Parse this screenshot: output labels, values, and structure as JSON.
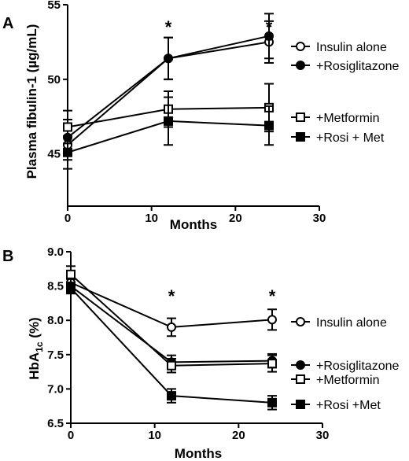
{
  "chart_data": [
    {
      "type": "line",
      "panel_label": "A",
      "xlabel": "Months",
      "ylabel": "Plasma fibulin-1 (µg/mL)",
      "xlim": [
        0,
        30
      ],
      "ylim": [
        41.5,
        55
      ],
      "xticks": [
        0,
        10,
        20,
        30
      ],
      "yticks": [
        45,
        50,
        55
      ],
      "x": [
        0,
        12,
        24
      ],
      "grid": false,
      "legend_position": "right",
      "significance_marks": [
        {
          "x": 12,
          "text": "*"
        },
        {
          "x": 24,
          "text": "*"
        }
      ],
      "series": [
        {
          "name": "Insulin alone",
          "marker": "open-circle",
          "values": [
            45.6,
            51.4,
            52.5
          ],
          "errors": [
            1.0,
            1.4,
            1.4
          ]
        },
        {
          "name": "+Rosiglitazone",
          "marker": "filled-circle",
          "values": [
            46.1,
            51.4,
            52.9
          ],
          "errors": [
            1.2,
            1.4,
            1.5
          ]
        },
        {
          "name": "+Metformin",
          "marker": "open-square",
          "values": [
            46.8,
            48.0,
            48.1
          ],
          "errors": [
            1.1,
            1.2,
            1.6
          ]
        },
        {
          "name": "+Rosi + Met",
          "marker": "filled-square",
          "values": [
            45.1,
            47.2,
            46.9
          ],
          "errors": [
            1.1,
            1.6,
            1.3
          ]
        }
      ]
    },
    {
      "type": "line",
      "panel_label": "B",
      "xlabel": "Months",
      "ylabel_main": "HbA",
      "ylabel_sub": "1c",
      "ylabel_unit": " (%)",
      "xlim": [
        0,
        30
      ],
      "ylim": [
        6.5,
        9.0
      ],
      "xticks": [
        0,
        10,
        20,
        30
      ],
      "yticks": [
        6.5,
        7.0,
        7.5,
        8.0,
        8.5,
        9.0
      ],
      "x": [
        0,
        12,
        24
      ],
      "grid": false,
      "legend_position": "right",
      "significance_marks": [
        {
          "x": 12,
          "text": "*"
        },
        {
          "x": 24,
          "text": "*"
        }
      ],
      "series": [
        {
          "name": "Insulin alone",
          "marker": "open-circle",
          "values": [
            8.55,
            7.9,
            8.01
          ],
          "errors": [
            0.12,
            0.13,
            0.15
          ]
        },
        {
          "name": "+Rosiglitazone",
          "marker": "filled-circle",
          "values": [
            8.5,
            7.39,
            7.41
          ],
          "errors": [
            0.1,
            0.1,
            0.1
          ]
        },
        {
          "name": "+Metformin",
          "marker": "open-square",
          "values": [
            8.67,
            7.34,
            7.37
          ],
          "errors": [
            0.12,
            0.1,
            0.12
          ]
        },
        {
          "name": "+Rosi +Met",
          "marker": "filled-square",
          "values": [
            8.47,
            6.9,
            6.8
          ],
          "errors": [
            0.08,
            0.1,
            0.1
          ]
        }
      ]
    }
  ]
}
